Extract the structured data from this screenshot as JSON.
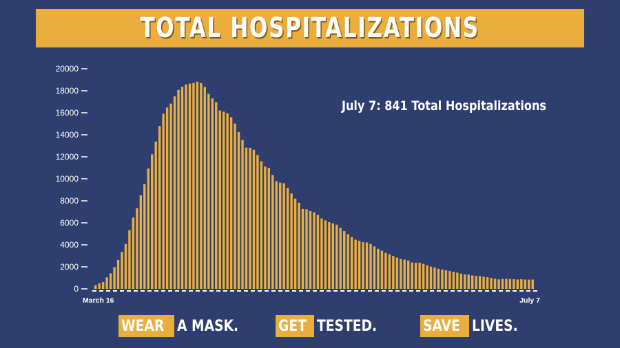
{
  "title": "TOTAL HOSPITALIZATIONS",
  "annotation": "July 7: 841 Total Hospitalizations",
  "footer": {
    "slogan1_highlight": "WEAR",
    "slogan1_rest": "A MASK.",
    "slogan2_highlight": "GET",
    "slogan2_rest": "TESTED.",
    "slogan3_highlight": "SAVE",
    "slogan3_rest": "LIVES."
  },
  "colors": {
    "background": "#2e3e6e",
    "bar": "#ebae3c",
    "text": "#ffffff"
  },
  "chart_data": {
    "type": "bar",
    "title": "TOTAL HOSPITALIZATIONS",
    "x_labels": [
      "March 16",
      "July 7"
    ],
    "ylim": [
      0,
      20000
    ],
    "yticks": [
      0,
      2000,
      4000,
      6000,
      8000,
      10000,
      12000,
      14000,
      16000,
      18000,
      20000
    ],
    "grid": false,
    "values": [
      326,
      496,
      617,
      1042,
      1406,
      1974,
      2635,
      3343,
      4079,
      5327,
      6481,
      7328,
      8503,
      9517,
      10929,
      12226,
      13383,
      14810,
      15905,
      16479,
      16837,
      17493,
      18079,
      18368,
      18569,
      18654,
      18707,
      18825,
      18697,
      18335,
      17735,
      17316,
      16967,
      16213,
      16103,
      15959,
      15599,
      15021,
      14258,
      13524,
      12839,
      12819,
      12646,
      12159,
      11598,
      11121,
      10993,
      10350,
      9786,
      9647,
      9600,
      9187,
      8665,
      8196,
      7827,
      7262,
      7226,
      7068,
      6946,
      6706,
      6394,
      6220,
      6063,
      5956,
      5829,
      5545,
      5251,
      4972,
      4709,
      4477,
      4363,
      4246,
      4219,
      4077,
      3859,
      3638,
      3469,
      3261,
      3134,
      2996,
      2847,
      2715,
      2653,
      2580,
      2399,
      2372,
      2381,
      2275,
      2134,
      2020,
      1939,
      1826,
      1757,
      1684,
      1621,
      1538,
      1471,
      1379,
      1308,
      1297,
      1216,
      1181,
      1170,
      1107,
      1062,
      999,
      918,
      858,
      902,
      907,
      895,
      878,
      853,
      874,
      843,
      837,
      841
    ]
  }
}
